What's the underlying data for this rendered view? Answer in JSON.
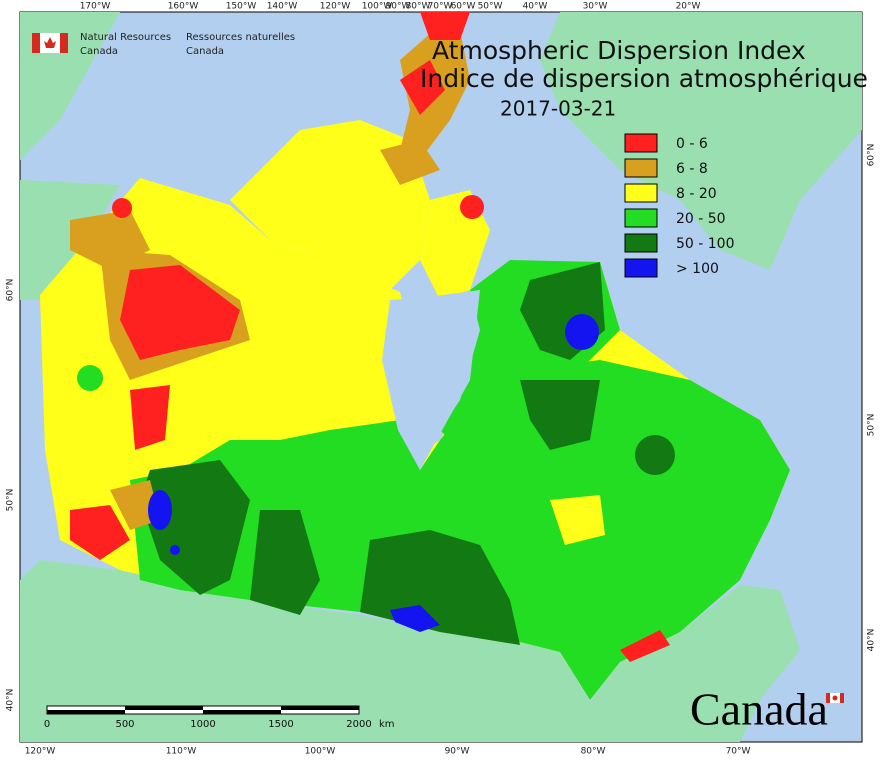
{
  "header": {
    "agency_en": [
      "Natural Resources",
      "Canada"
    ],
    "agency_fr": [
      "Ressources naturelles",
      "Canada"
    ]
  },
  "title": {
    "en": "Atmospheric Dispersion Index",
    "fr": "Indice de dispersion atmosphérique",
    "date": "2017-03-21"
  },
  "legend": {
    "items": [
      {
        "label": "0 - 6",
        "color": "#ff2020"
      },
      {
        "label": "6 - 8",
        "color": "#d9a020"
      },
      {
        "label": "8 - 20",
        "color": "#ffff1a"
      },
      {
        "label": "20 - 50",
        "color": "#22dd22"
      },
      {
        "label": "50 - 100",
        "color": "#137a13"
      },
      {
        "label": "> 100",
        "color": "#1414f0"
      }
    ]
  },
  "graticule": {
    "top": [
      "170°W",
      "160°W",
      "150°W",
      "140°W",
      "120°W",
      "100°W",
      "90°W",
      "80°W",
      "70°W",
      "60°W",
      "50°W",
      "40°W",
      "30°W",
      "20°W"
    ],
    "bottom": [
      "120°W",
      "110°W",
      "100°W",
      "90°W",
      "80°W",
      "70°W"
    ],
    "right": [
      "60°N",
      "50°N",
      "40°N"
    ],
    "left": [
      "60°N",
      "50°N",
      "40°N"
    ]
  },
  "scale_bar": {
    "ticks": [
      0,
      500,
      1000,
      1500,
      2000
    ],
    "unit": "km"
  },
  "wordmark": "Canada"
}
